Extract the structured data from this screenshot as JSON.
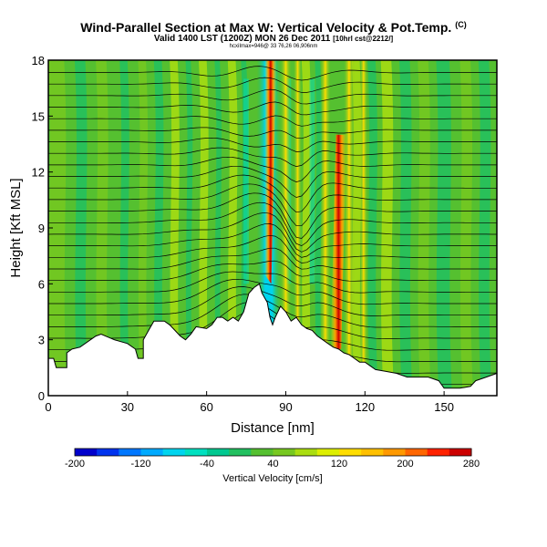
{
  "header": {
    "title": "Wind-Parallel Section at Max W: Vertical Velocity & Pot.Temp.",
    "title_mark": "(C)",
    "subtitle": "Valid 1400 LST (1200Z) MON 26 Dec 2011",
    "subtitle_small": "[10hrl cst@2212/]",
    "subtitle2": "hcxiImax=946@ 33 76,26 06,906nm"
  },
  "chart_data": {
    "type": "heatmap",
    "xlabel": "Distance [nm]",
    "ylabel": "Height [Kft MSL]",
    "xlim": [
      0,
      170
    ],
    "ylim": [
      0,
      18
    ],
    "xticks": [
      0,
      30,
      60,
      90,
      120,
      150
    ],
    "yticks": [
      0,
      3,
      6,
      9,
      12,
      15,
      18
    ],
    "colorbar": {
      "label": "Vertical Velocity [cm/s]",
      "ticks": [
        -200,
        -120,
        -40,
        40,
        120,
        200,
        280
      ],
      "colors": [
        "#0000cc",
        "#0033ee",
        "#0077ff",
        "#00aaff",
        "#00d4ee",
        "#00e0c0",
        "#00c890",
        "#22c060",
        "#55c030",
        "#77c820",
        "#aadd10",
        "#ddee00",
        "#ffdd00",
        "#ffc000",
        "#ff9900",
        "#ff6600",
        "#ff2200",
        "#cc0000"
      ]
    },
    "updraft_peaks_nm": [
      84,
      110
    ],
    "downdraft_core_nm": [
      80,
      87
    ],
    "terrain_profile": [
      [
        0,
        2
      ],
      [
        2,
        2
      ],
      [
        3,
        1.5
      ],
      [
        7,
        1.5
      ],
      [
        7,
        2.3
      ],
      [
        9,
        2.5
      ],
      [
        12,
        2.6
      ],
      [
        18,
        3.2
      ],
      [
        20,
        3.3
      ],
      [
        25,
        3.0
      ],
      [
        30,
        2.8
      ],
      [
        33,
        2.5
      ],
      [
        34,
        2.0
      ],
      [
        36,
        2.0
      ],
      [
        36,
        3.0
      ],
      [
        38,
        3.5
      ],
      [
        40,
        4.0
      ],
      [
        44,
        4.0
      ],
      [
        46,
        3.8
      ],
      [
        48,
        3.5
      ],
      [
        50,
        3.2
      ],
      [
        52,
        3.0
      ],
      [
        54,
        3.3
      ],
      [
        55,
        3.5
      ],
      [
        56,
        3.7
      ],
      [
        60,
        3.6
      ],
      [
        62,
        3.8
      ],
      [
        64,
        4.2
      ],
      [
        66,
        4.2
      ],
      [
        68,
        4.0
      ],
      [
        70,
        4.2
      ],
      [
        72,
        4.0
      ],
      [
        74,
        4.5
      ],
      [
        76,
        5.5
      ],
      [
        78,
        5.8
      ],
      [
        80,
        6.0
      ],
      [
        81,
        5.5
      ],
      [
        83,
        5.0
      ],
      [
        84,
        4.2
      ],
      [
        85,
        3.8
      ],
      [
        86,
        4.2
      ],
      [
        88,
        4.8
      ],
      [
        90,
        4.5
      ],
      [
        92,
        4.0
      ],
      [
        94,
        4.2
      ],
      [
        96,
        3.8
      ],
      [
        98,
        3.6
      ],
      [
        100,
        3.5
      ],
      [
        102,
        3.2
      ],
      [
        104,
        3.0
      ],
      [
        106,
        2.8
      ],
      [
        108,
        2.6
      ],
      [
        110,
        2.5
      ],
      [
        112,
        2.3
      ],
      [
        114,
        2.2
      ],
      [
        116,
        2.0
      ],
      [
        118,
        1.8
      ],
      [
        120,
        1.8
      ],
      [
        122,
        1.6
      ],
      [
        124,
        1.4
      ],
      [
        128,
        1.3
      ],
      [
        132,
        1.2
      ],
      [
        136,
        1.0
      ],
      [
        140,
        1.0
      ],
      [
        144,
        1.0
      ],
      [
        148,
        0.8
      ],
      [
        150,
        0.4
      ],
      [
        156,
        0.4
      ],
      [
        160,
        0.5
      ],
      [
        162,
        0.8
      ],
      [
        166,
        1.0
      ],
      [
        170,
        1.2
      ]
    ]
  }
}
